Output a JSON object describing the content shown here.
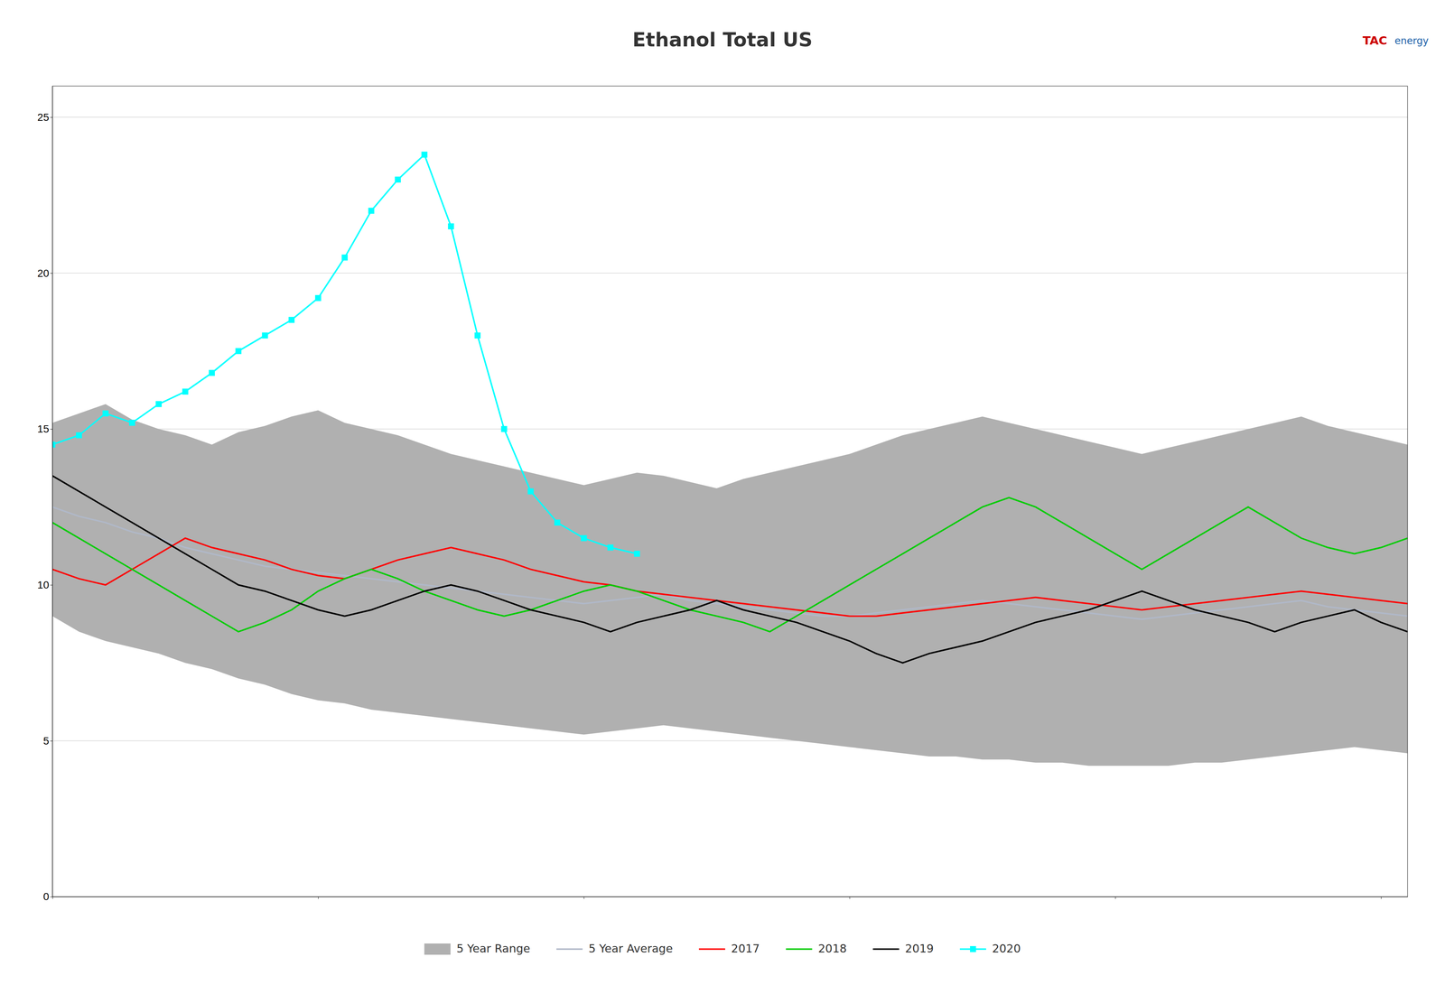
{
  "chart_data": {
    "type": "line",
    "title": "Ethanol Total US",
    "annotations": [
      "TAC",
      "energy"
    ],
    "x": [
      0,
      1,
      2,
      3,
      4,
      5,
      6,
      7,
      8,
      9,
      10,
      11,
      12,
      13,
      14,
      15,
      16,
      17,
      18,
      19,
      20,
      21,
      22,
      23,
      24,
      25,
      26,
      27,
      28,
      29,
      30,
      31,
      32,
      33,
      34,
      35,
      36,
      37,
      38,
      39,
      40,
      41,
      42,
      43,
      44,
      45,
      46,
      47,
      48,
      49,
      50,
      51
    ],
    "xlim": [
      0,
      51
    ],
    "xticks": [
      0,
      10,
      20,
      30,
      40,
      50
    ],
    "ylim": [
      0,
      26
    ],
    "yticks": [
      0,
      5,
      10,
      15,
      20,
      25
    ],
    "grid": true,
    "legend": "bottom",
    "tick_labels": "y",
    "series": [
      {
        "name": "5 Year Range",
        "type": "area",
        "color": "#b0b0b0",
        "values": [
          15.2,
          15.5,
          15.8,
          15.3,
          15.0,
          14.8,
          14.5,
          14.9,
          15.1,
          15.4,
          15.6,
          15.2,
          15.0,
          14.8,
          14.5,
          14.2,
          14.0,
          13.8,
          13.6,
          13.4,
          13.2,
          13.4,
          13.6,
          13.5,
          13.3,
          13.1,
          13.4,
          13.6,
          13.8,
          14.0,
          14.2,
          14.5,
          14.8,
          15.0,
          15.2,
          15.4,
          15.2,
          15.0,
          14.8,
          14.6,
          14.4,
          14.2,
          14.4,
          14.6,
          14.8,
          15.0,
          15.2,
          15.4,
          15.1,
          14.9,
          14.7,
          14.5
        ],
        "lower": [
          9.0,
          8.5,
          8.2,
          8.0,
          7.8,
          7.5,
          7.3,
          7.0,
          6.8,
          6.5,
          6.3,
          6.2,
          6.0,
          5.9,
          5.8,
          5.7,
          5.6,
          5.5,
          5.4,
          5.3,
          5.2,
          5.3,
          5.4,
          5.5,
          5.4,
          5.3,
          5.2,
          5.1,
          5.0,
          4.9,
          4.8,
          4.7,
          4.6,
          4.5,
          4.5,
          4.4,
          4.4,
          4.3,
          4.3,
          4.2,
          4.2,
          4.2,
          4.2,
          4.3,
          4.3,
          4.4,
          4.5,
          4.6,
          4.7,
          4.8,
          4.7,
          4.6
        ]
      },
      {
        "name": "5 Year Average",
        "type": "line",
        "color": "#b0b8c8",
        "values": [
          12.5,
          12.2,
          12.0,
          11.7,
          11.5,
          11.2,
          11.0,
          10.8,
          10.6,
          10.5,
          10.4,
          10.3,
          10.2,
          10.1,
          10.0,
          9.9,
          9.8,
          9.7,
          9.6,
          9.5,
          9.4,
          9.5,
          9.6,
          9.7,
          9.5,
          9.4,
          9.3,
          9.2,
          9.1,
          9.0,
          9.0,
          9.1,
          9.2,
          9.3,
          9.4,
          9.5,
          9.4,
          9.3,
          9.2,
          9.1,
          9.0,
          8.9,
          9.0,
          9.1,
          9.2,
          9.3,
          9.4,
          9.5,
          9.3,
          9.2,
          9.1,
          9.0
        ]
      },
      {
        "name": "2017",
        "type": "line",
        "color": "red",
        "values": [
          10.5,
          10.2,
          10.0,
          10.5,
          11.0,
          11.5,
          11.2,
          11.0,
          10.8,
          10.5,
          10.3,
          10.2,
          10.5,
          10.8,
          11.0,
          11.2,
          11.0,
          10.8,
          10.5,
          10.3,
          10.1,
          10.0,
          9.8,
          9.7,
          9.6,
          9.5,
          9.4,
          9.3,
          9.2,
          9.1,
          9.0,
          9.0,
          9.1,
          9.2,
          9.3,
          9.4,
          9.5,
          9.6,
          9.5,
          9.4,
          9.3,
          9.2,
          9.3,
          9.4,
          9.5,
          9.6,
          9.7,
          9.8,
          9.7,
          9.6,
          9.5,
          9.4
        ]
      },
      {
        "name": "2018",
        "type": "line",
        "color": "#00cc00",
        "values": [
          12.0,
          11.5,
          11.0,
          10.5,
          10.0,
          9.5,
          9.0,
          8.5,
          8.8,
          9.2,
          9.8,
          10.2,
          10.5,
          10.2,
          9.8,
          9.5,
          9.2,
          9.0,
          9.2,
          9.5,
          9.8,
          10.0,
          9.8,
          9.5,
          9.2,
          9.0,
          8.8,
          8.5,
          9.0,
          9.5,
          10.0,
          10.5,
          11.0,
          11.5,
          12.0,
          12.5,
          12.8,
          12.5,
          12.0,
          11.5,
          11.0,
          10.5,
          11.0,
          11.5,
          12.0,
          12.5,
          12.0,
          11.5,
          11.2,
          11.0,
          11.2,
          11.5
        ]
      },
      {
        "name": "2019",
        "type": "line",
        "color": "black",
        "values": [
          13.5,
          13.0,
          12.5,
          12.0,
          11.5,
          11.0,
          10.5,
          10.0,
          9.8,
          9.5,
          9.2,
          9.0,
          9.2,
          9.5,
          9.8,
          10.0,
          9.8,
          9.5,
          9.2,
          9.0,
          8.8,
          8.5,
          8.8,
          9.0,
          9.2,
          9.5,
          9.2,
          9.0,
          8.8,
          8.5,
          8.2,
          7.8,
          7.5,
          7.8,
          8.0,
          8.2,
          8.5,
          8.8,
          9.0,
          9.2,
          9.5,
          9.8,
          9.5,
          9.2,
          9.0,
          8.8,
          8.5,
          8.8,
          9.0,
          9.2,
          8.8,
          8.5
        ]
      },
      {
        "name": "2020",
        "type": "line",
        "color": "cyan",
        "marker": "square",
        "values": [
          14.5,
          14.8,
          15.5,
          15.2,
          15.8,
          16.2,
          16.8,
          17.5,
          18.0,
          18.5,
          19.2,
          20.5,
          22.0,
          23.0,
          23.8,
          21.5,
          18.0,
          15.0,
          13.0,
          12.0,
          11.5,
          11.2,
          11.0,
          null,
          null,
          null,
          null,
          null,
          null,
          null,
          null,
          null,
          null,
          null,
          null,
          null,
          null,
          null,
          null,
          null,
          null,
          null,
          null,
          null,
          null,
          null,
          null,
          null,
          null,
          null,
          null,
          null
        ]
      }
    ]
  }
}
